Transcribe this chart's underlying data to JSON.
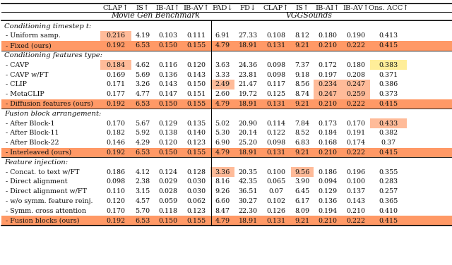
{
  "col_headers": [
    "CLAP↑",
    "IS↑",
    "IB-AI↑",
    "IB-AV↑",
    "FAD↓",
    "FD↓",
    "CLAP↑",
    "IS↑",
    "IB-AI↑",
    "IB-AV↑",
    "Ons. ACC↑"
  ],
  "group1_label": "Movie Gen Benchmark",
  "group2_label": "VGGSounds",
  "sections": [
    {
      "title": "Conditioning timestep t:",
      "rows": [
        {
          "label": "- Uniform samp.",
          "vals": [
            "0.216",
            "4.19",
            "0.103",
            "0.111",
            "6.91",
            "27.33",
            "0.108",
            "8.12",
            "0.180",
            "0.190",
            "0.413"
          ]
        },
        {
          "label": "- Fixed (ours)",
          "vals": [
            "0.192",
            "6.53",
            "0.150",
            "0.155",
            "4.79",
            "18.91",
            "0.131",
            "9.21",
            "0.210",
            "0.222",
            "0.415"
          ]
        }
      ]
    },
    {
      "title": "Conditioning features type:",
      "rows": [
        {
          "label": "- CAVP",
          "vals": [
            "0.184",
            "4.62",
            "0.116",
            "0.120",
            "3.63",
            "24.36",
            "0.098",
            "7.37",
            "0.172",
            "0.180",
            "0.383"
          ]
        },
        {
          "label": "- CAVP w/FT",
          "vals": [
            "0.169",
            "5.69",
            "0.136",
            "0.143",
            "3.33",
            "23.81",
            "0.098",
            "9.18",
            "0.197",
            "0.208",
            "0.371"
          ]
        },
        {
          "label": "- CLIP",
          "vals": [
            "0.171",
            "3.26",
            "0.143",
            "0.150",
            "2.49",
            "21.47",
            "0.117",
            "8.56",
            "0.234",
            "0.247",
            "0.386"
          ]
        },
        {
          "label": "- MetaCLIP",
          "vals": [
            "0.177",
            "4.77",
            "0.147",
            "0.151",
            "2.60",
            "19.72",
            "0.125",
            "8.74",
            "0.247",
            "0.259",
            "0.373"
          ]
        },
        {
          "label": "- Diffusion features (ours)",
          "vals": [
            "0.192",
            "6.53",
            "0.150",
            "0.155",
            "4.79",
            "18.91",
            "0.131",
            "9.21",
            "0.210",
            "0.222",
            "0.415"
          ]
        }
      ]
    },
    {
      "title": "Fusion block arrangement:",
      "rows": [
        {
          "label": "- After Block-1",
          "vals": [
            "0.170",
            "5.67",
            "0.129",
            "0.135",
            "5.02",
            "20.90",
            "0.114",
            "7.84",
            "0.173",
            "0.170",
            "0.433"
          ]
        },
        {
          "label": "- After Block-11",
          "vals": [
            "0.182",
            "5.92",
            "0.138",
            "0.140",
            "5.30",
            "20.14",
            "0.122",
            "8.52",
            "0.184",
            "0.191",
            "0.382"
          ]
        },
        {
          "label": "- After Block-22",
          "vals": [
            "0.146",
            "4.29",
            "0.120",
            "0.123",
            "6.90",
            "25.20",
            "0.098",
            "6.83",
            "0.168",
            "0.174",
            "0.37"
          ]
        },
        {
          "label": "- Interleaved (ours)",
          "vals": [
            "0.192",
            "6.53",
            "0.150",
            "0.155",
            "4.79",
            "18.91",
            "0.131",
            "9.21",
            "0.210",
            "0.222",
            "0.415"
          ]
        }
      ]
    },
    {
      "title": "Feature injection:",
      "rows": [
        {
          "label": "- Concat. to text w/FT",
          "vals": [
            "0.186",
            "4.12",
            "0.124",
            "0.128",
            "3.36",
            "20.35",
            "0.100",
            "9.56",
            "0.186",
            "0.196",
            "0.355"
          ]
        },
        {
          "label": "- Direct alignment",
          "vals": [
            "0.098",
            "2.38",
            "0.029",
            "0.030",
            "8.16",
            "42.35",
            "0.065",
            "3.90",
            "0.094",
            "0.100",
            "0.283"
          ]
        },
        {
          "label": "- Direct alignment w/FT",
          "vals": [
            "0.110",
            "3.15",
            "0.028",
            "0.030",
            "9.26",
            "36.51",
            "0.07",
            "6.45",
            "0.129",
            "0.137",
            "0.257"
          ]
        },
        {
          "label": "- w/o symm. feature reinj.",
          "vals": [
            "0.120",
            "4.57",
            "0.059",
            "0.062",
            "6.60",
            "30.27",
            "0.102",
            "6.17",
            "0.136",
            "0.143",
            "0.365"
          ]
        },
        {
          "label": "- Symm. cross attention",
          "vals": [
            "0.170",
            "5.70",
            "0.118",
            "0.123",
            "8.47",
            "22.30",
            "0.126",
            "8.09",
            "0.194",
            "0.210",
            "0.410"
          ]
        },
        {
          "label": "- Fusion blocks (ours)",
          "vals": [
            "0.192",
            "6.53",
            "0.150",
            "0.155",
            "4.79",
            "18.91",
            "0.131",
            "9.21",
            "0.210",
            "0.222",
            "0.415"
          ]
        }
      ]
    }
  ],
  "cell_highlights": {
    "0,0,0": "light",
    "1,0,0": "light",
    "1,0,10": "yellow",
    "1,2,4": "light",
    "1,2,8": "light",
    "1,2,9": "light",
    "1,3,8": "light",
    "1,3,9": "light",
    "2,0,10": "light",
    "3,0,4": "light",
    "3,0,7": "light"
  },
  "color_light": "#FFBB99",
  "color_ours": "#FF9966",
  "color_yellow": "#FFEE99",
  "color_bg": "#FFFFFF"
}
